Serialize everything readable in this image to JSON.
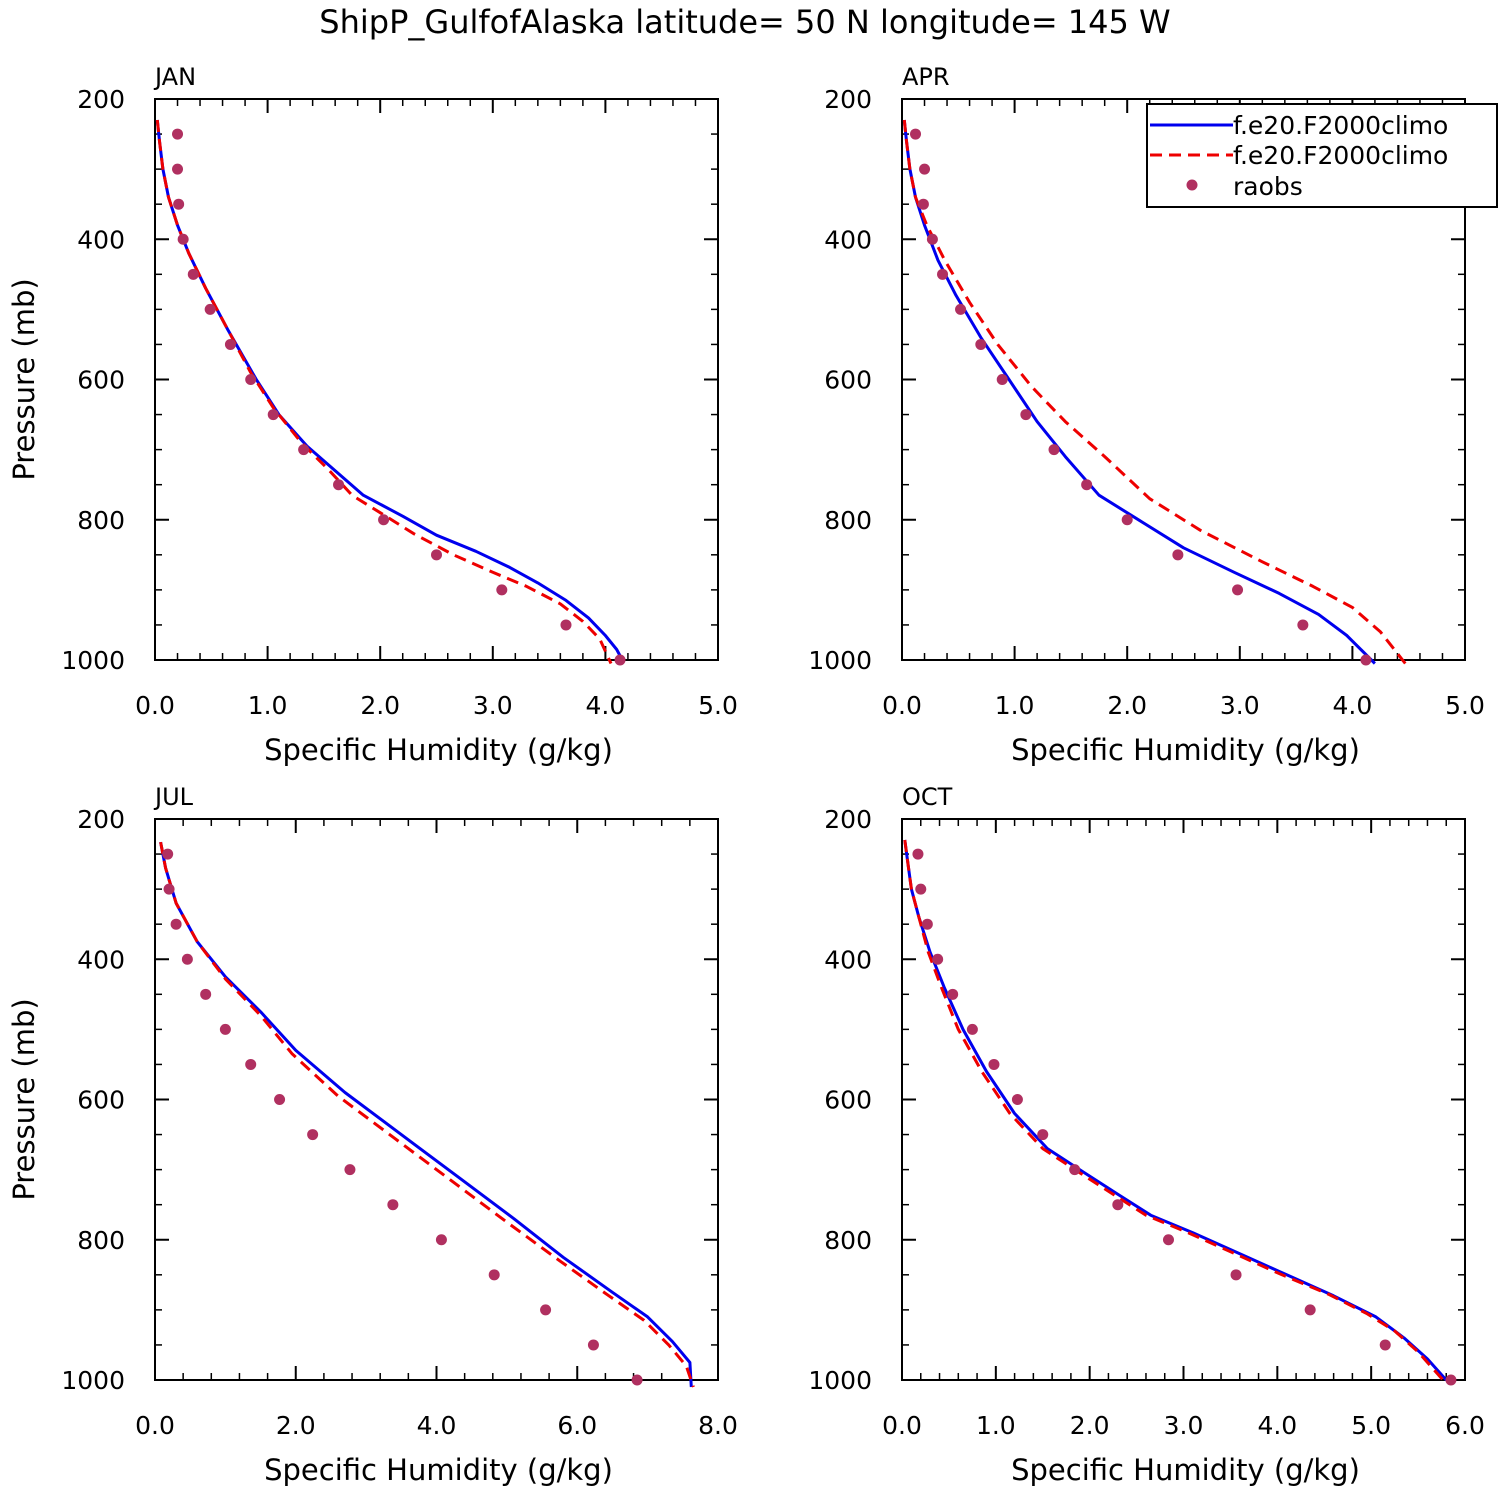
{
  "title": "ShipP_GulfofAlaska  latitude= 50 N longitude= 145 W",
  "legend": {
    "items": [
      {
        "label": "f.e20.F2000climo",
        "color": "#0000ee",
        "style": "solid"
      },
      {
        "label": "f.e20.F2000climo",
        "color": "#ee0000",
        "style": "dashed"
      },
      {
        "label": "raobs",
        "color": "#b03060",
        "style": "dot"
      }
    ]
  },
  "chart_data": [
    {
      "type": "line",
      "panel": "JAN",
      "xlabel": "Specific Humidity (g/kg)",
      "ylabel": "Pressure (mb)",
      "xlim": [
        0,
        5
      ],
      "ylim": [
        200,
        1000
      ],
      "y_reversed": true,
      "xticks": [
        "0.0",
        "1.0",
        "2.0",
        "3.0",
        "4.0",
        "5.0"
      ],
      "yticks": [
        "200",
        "400",
        "600",
        "800",
        "1000"
      ],
      "series": [
        {
          "name": "f.e20.F2000climo",
          "color": "#0000ee",
          "dash": "solid",
          "points": [
            [
              0.02,
              230
            ],
            [
              0.04,
              260
            ],
            [
              0.07,
              300
            ],
            [
              0.12,
              340
            ],
            [
              0.2,
              380
            ],
            [
              0.3,
              420
            ],
            [
              0.45,
              470
            ],
            [
              0.65,
              530
            ],
            [
              0.9,
              600
            ],
            [
              1.1,
              650
            ],
            [
              1.35,
              695
            ],
            [
              1.6,
              730
            ],
            [
              1.85,
              765
            ],
            [
              2.2,
              795
            ],
            [
              2.5,
              822
            ],
            [
              2.85,
              845
            ],
            [
              3.15,
              868
            ],
            [
              3.4,
              890
            ],
            [
              3.65,
              915
            ],
            [
              3.85,
              940
            ],
            [
              4.0,
              965
            ],
            [
              4.1,
              985
            ],
            [
              4.15,
              1000
            ]
          ]
        },
        {
          "name": "f.e20.F2000climo",
          "color": "#ee0000",
          "dash": "dashed",
          "points": [
            [
              0.02,
              230
            ],
            [
              0.04,
              260
            ],
            [
              0.07,
              300
            ],
            [
              0.12,
              340
            ],
            [
              0.2,
              380
            ],
            [
              0.3,
              420
            ],
            [
              0.45,
              470
            ],
            [
              0.65,
              530
            ],
            [
              0.85,
              590
            ],
            [
              1.05,
              640
            ],
            [
              1.3,
              690
            ],
            [
              1.55,
              730
            ],
            [
              1.75,
              765
            ],
            [
              2.0,
              790
            ],
            [
              2.3,
              820
            ],
            [
              2.65,
              850
            ],
            [
              3.0,
              875
            ],
            [
              3.3,
              895
            ],
            [
              3.6,
              920
            ],
            [
              3.8,
              945
            ],
            [
              3.95,
              970
            ],
            [
              4.05,
              1005
            ]
          ]
        },
        {
          "name": "raobs",
          "color": "#b03060",
          "dash": "dot",
          "points": [
            [
              0.2,
              250
            ],
            [
              0.2,
              300
            ],
            [
              0.21,
              350
            ],
            [
              0.25,
              400
            ],
            [
              0.34,
              450
            ],
            [
              0.49,
              500
            ],
            [
              0.67,
              550
            ],
            [
              0.85,
              600
            ],
            [
              1.05,
              650
            ],
            [
              1.32,
              700
            ],
            [
              1.63,
              750
            ],
            [
              2.03,
              800
            ],
            [
              2.5,
              850
            ],
            [
              3.08,
              900
            ],
            [
              3.65,
              950
            ],
            [
              4.13,
              1000
            ]
          ]
        }
      ]
    },
    {
      "type": "line",
      "panel": "APR",
      "xlabel": "Specific Humidity (g/kg)",
      "ylabel": "",
      "xlim": [
        0,
        5
      ],
      "ylim": [
        200,
        1000
      ],
      "y_reversed": true,
      "xticks": [
        "0.0",
        "1.0",
        "2.0",
        "3.0",
        "4.0",
        "5.0"
      ],
      "yticks": [
        "200",
        "400",
        "600",
        "800",
        "1000"
      ],
      "series": [
        {
          "name": "f.e20.F2000climo",
          "color": "#0000ee",
          "dash": "solid",
          "points": [
            [
              0.02,
              230
            ],
            [
              0.04,
              260
            ],
            [
              0.07,
              300
            ],
            [
              0.12,
              340
            ],
            [
              0.2,
              380
            ],
            [
              0.32,
              430
            ],
            [
              0.48,
              480
            ],
            [
              0.7,
              540
            ],
            [
              0.95,
              600
            ],
            [
              1.2,
              660
            ],
            [
              1.45,
              710
            ],
            [
              1.75,
              765
            ],
            [
              2.1,
              800
            ],
            [
              2.5,
              840
            ],
            [
              2.95,
              875
            ],
            [
              3.35,
              905
            ],
            [
              3.7,
              935
            ],
            [
              3.95,
              965
            ],
            [
              4.2,
              1005
            ]
          ]
        },
        {
          "name": "f.e20.F2000climo",
          "color": "#ee0000",
          "dash": "dashed",
          "points": [
            [
              0.02,
              230
            ],
            [
              0.04,
              260
            ],
            [
              0.07,
              300
            ],
            [
              0.12,
              340
            ],
            [
              0.22,
              380
            ],
            [
              0.38,
              430
            ],
            [
              0.6,
              490
            ],
            [
              0.85,
              550
            ],
            [
              1.15,
              610
            ],
            [
              1.45,
              660
            ],
            [
              1.8,
              710
            ],
            [
              2.2,
              770
            ],
            [
              2.65,
              815
            ],
            [
              3.2,
              860
            ],
            [
              3.65,
              895
            ],
            [
              4.0,
              925
            ],
            [
              4.25,
              960
            ],
            [
              4.47,
              1005
            ]
          ]
        },
        {
          "name": "raobs",
          "color": "#b03060",
          "dash": "dot",
          "points": [
            [
              0.12,
              250
            ],
            [
              0.2,
              300
            ],
            [
              0.19,
              350
            ],
            [
              0.27,
              400
            ],
            [
              0.36,
              450
            ],
            [
              0.52,
              500
            ],
            [
              0.7,
              550
            ],
            [
              0.89,
              600
            ],
            [
              1.1,
              650
            ],
            [
              1.35,
              700
            ],
            [
              1.64,
              750
            ],
            [
              2.0,
              800
            ],
            [
              2.45,
              850
            ],
            [
              2.98,
              900
            ],
            [
              3.56,
              950
            ],
            [
              4.12,
              1000
            ]
          ]
        }
      ]
    },
    {
      "type": "line",
      "panel": "JUL",
      "xlabel": "Specific Humidity (g/kg)",
      "ylabel": "Pressure (mb)",
      "xlim": [
        0,
        8
      ],
      "ylim": [
        200,
        1000
      ],
      "y_reversed": true,
      "xticks": [
        "0.0",
        "2.0",
        "4.0",
        "6.0",
        "8.0"
      ],
      "yticks": [
        "200",
        "400",
        "600",
        "800",
        "1000"
      ],
      "series": [
        {
          "name": "f.e20.F2000climo",
          "color": "#0000ee",
          "dash": "solid",
          "points": [
            [
              0.08,
              233
            ],
            [
              0.15,
              270
            ],
            [
              0.3,
              320
            ],
            [
              0.6,
              375
            ],
            [
              1.0,
              425
            ],
            [
              1.5,
              475
            ],
            [
              2.0,
              530
            ],
            [
              2.7,
              590
            ],
            [
              3.5,
              650
            ],
            [
              4.3,
              710
            ],
            [
              5.1,
              770
            ],
            [
              5.8,
              825
            ],
            [
              6.5,
              875
            ],
            [
              7.0,
              910
            ],
            [
              7.35,
              945
            ],
            [
              7.6,
              975
            ],
            [
              7.62,
              1010
            ]
          ]
        },
        {
          "name": "f.e20.F2000climo",
          "color": "#ee0000",
          "dash": "dashed",
          "points": [
            [
              0.08,
              233
            ],
            [
              0.15,
              270
            ],
            [
              0.3,
              320
            ],
            [
              0.6,
              375
            ],
            [
              1.0,
              428
            ],
            [
              1.5,
              480
            ],
            [
              1.95,
              535
            ],
            [
              2.6,
              595
            ],
            [
              3.4,
              655
            ],
            [
              4.2,
              715
            ],
            [
              5.0,
              775
            ],
            [
              5.75,
              830
            ],
            [
              6.45,
              880
            ],
            [
              6.95,
              915
            ],
            [
              7.3,
              950
            ],
            [
              7.55,
              980
            ],
            [
              7.65,
              1010
            ]
          ]
        },
        {
          "name": "raobs",
          "color": "#b03060",
          "dash": "dot",
          "points": [
            [
              0.18,
              250
            ],
            [
              0.2,
              300
            ],
            [
              0.3,
              350
            ],
            [
              0.46,
              400
            ],
            [
              0.72,
              450
            ],
            [
              1.0,
              500
            ],
            [
              1.36,
              550
            ],
            [
              1.77,
              600
            ],
            [
              2.24,
              650
            ],
            [
              2.77,
              700
            ],
            [
              3.38,
              750
            ],
            [
              4.07,
              800
            ],
            [
              4.82,
              850
            ],
            [
              5.55,
              900
            ],
            [
              6.23,
              950
            ],
            [
              6.85,
              1000
            ]
          ]
        }
      ]
    },
    {
      "type": "line",
      "panel": "OCT",
      "xlabel": "Specific Humidity (g/kg)",
      "ylabel": "",
      "xlim": [
        0,
        6
      ],
      "ylim": [
        200,
        1000
      ],
      "y_reversed": true,
      "xticks": [
        "0.0",
        "1.0",
        "2.0",
        "3.0",
        "4.0",
        "5.0",
        "6.0"
      ],
      "yticks": [
        "200",
        "400",
        "600",
        "800",
        "1000"
      ],
      "series": [
        {
          "name": "f.e20.F2000climo",
          "color": "#0000ee",
          "dash": "solid",
          "points": [
            [
              0.03,
              230
            ],
            [
              0.06,
              260
            ],
            [
              0.1,
              300
            ],
            [
              0.18,
              340
            ],
            [
              0.3,
              390
            ],
            [
              0.45,
              440
            ],
            [
              0.65,
              500
            ],
            [
              0.9,
              560
            ],
            [
              1.2,
              620
            ],
            [
              1.55,
              670
            ],
            [
              1.95,
              705
            ],
            [
              2.3,
              735
            ],
            [
              2.65,
              765
            ],
            [
              3.1,
              790
            ],
            [
              3.6,
              820
            ],
            [
              4.1,
              850
            ],
            [
              4.6,
              880
            ],
            [
              5.05,
              910
            ],
            [
              5.35,
              940
            ],
            [
              5.6,
              970
            ],
            [
              5.8,
              1000
            ]
          ]
        },
        {
          "name": "f.e20.F2000climo",
          "color": "#ee0000",
          "dash": "dashed",
          "points": [
            [
              0.03,
              230
            ],
            [
              0.06,
              260
            ],
            [
              0.1,
              300
            ],
            [
              0.18,
              340
            ],
            [
              0.28,
              390
            ],
            [
              0.42,
              440
            ],
            [
              0.6,
              500
            ],
            [
              0.85,
              560
            ],
            [
              1.15,
              620
            ],
            [
              1.5,
              670
            ],
            [
              1.9,
              705
            ],
            [
              2.25,
              735
            ],
            [
              2.6,
              765
            ],
            [
              3.05,
              790
            ],
            [
              3.55,
              820
            ],
            [
              4.05,
              850
            ],
            [
              4.55,
              878
            ],
            [
              4.95,
              905
            ],
            [
              5.25,
              930
            ],
            [
              5.5,
              960
            ],
            [
              5.7,
              990
            ],
            [
              5.8,
              1005
            ]
          ]
        },
        {
          "name": "raobs",
          "color": "#b03060",
          "dash": "dot",
          "points": [
            [
              0.17,
              250
            ],
            [
              0.2,
              300
            ],
            [
              0.27,
              350
            ],
            [
              0.38,
              400
            ],
            [
              0.54,
              450
            ],
            [
              0.75,
              500
            ],
            [
              0.98,
              550
            ],
            [
              1.23,
              600
            ],
            [
              1.5,
              650
            ],
            [
              1.84,
              700
            ],
            [
              2.3,
              750
            ],
            [
              2.84,
              800
            ],
            [
              3.56,
              850
            ],
            [
              4.35,
              900
            ],
            [
              5.15,
              950
            ],
            [
              5.85,
              1000
            ]
          ]
        }
      ]
    }
  ]
}
